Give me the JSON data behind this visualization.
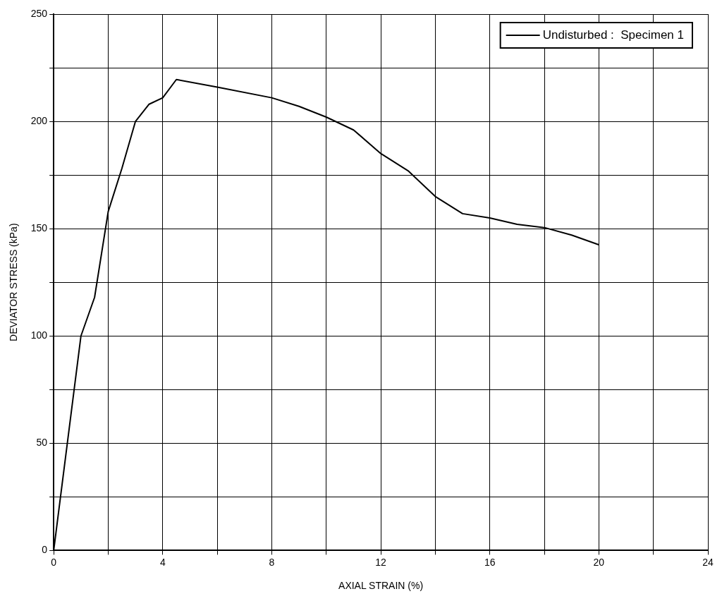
{
  "chart_data": {
    "type": "line",
    "xlabel": "AXIAL STRAIN (%)",
    "ylabel": "DEVIATOR STRESS (kPa)",
    "x": [
      0,
      1,
      1.5,
      2,
      2.5,
      3,
      3.5,
      4,
      4.5,
      6,
      8,
      9,
      10,
      11,
      12,
      13,
      14,
      15,
      16,
      17,
      18,
      19,
      20
    ],
    "series": [
      {
        "name": "Undisturbed :  Specimen 1",
        "color": "#000000",
        "values": [
          0,
          100,
          118,
          158,
          178,
          200,
          208,
          211,
          219.5,
          216,
          211,
          207,
          202,
          196,
          185,
          177,
          165,
          157,
          155,
          152,
          150.5,
          147,
          142.5
        ]
      }
    ],
    "xlim": [
      0,
      24
    ],
    "xticks": [
      0,
      {
        "value": 2,
        "label": null
      },
      4,
      {
        "value": 6,
        "label": null
      },
      8,
      {
        "value": 10,
        "label": null
      },
      12,
      {
        "value": 14,
        "label": null
      },
      16,
      {
        "value": 18,
        "label": null
      },
      20,
      {
        "value": 22,
        "label": null
      },
      24
    ],
    "ylim": [
      0,
      250
    ],
    "yticks": [
      0,
      {
        "value": 25,
        "label": null
      },
      50,
      {
        "value": 75,
        "label": null
      },
      100,
      {
        "value": 125,
        "label": null
      },
      150,
      {
        "value": 175,
        "label": null
      },
      200,
      {
        "value": 225,
        "label": null
      },
      250
    ],
    "grid": true,
    "legend": "top right",
    "marker": "none",
    "line_style": "solid"
  }
}
